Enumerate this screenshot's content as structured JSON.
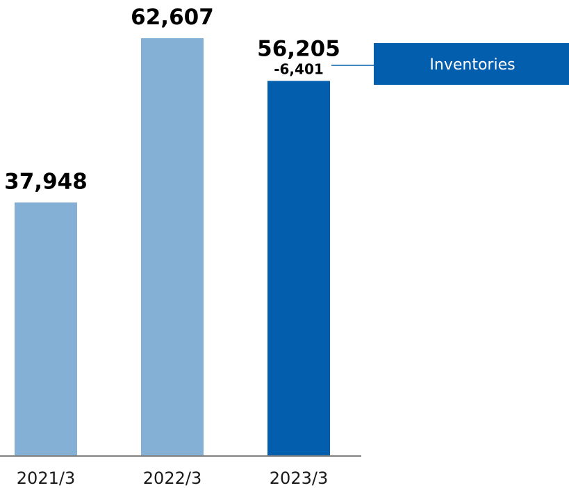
{
  "chart_data": {
    "type": "bar",
    "categories": [
      "2021/3",
      "2022/3",
      "2023/3"
    ],
    "values": [
      37948,
      62607,
      56205
    ],
    "value_labels": [
      "37,948",
      "62,607",
      "56,205"
    ],
    "annotations": [
      {
        "category": "2023/3",
        "text": "-6,401"
      }
    ],
    "legend": {
      "label": "Inventories",
      "placement": "top-right"
    },
    "colors": {
      "previous_years": "#85b0d6",
      "current_year": "#045eae",
      "axis": "#808080"
    },
    "ylim": [
      0,
      70000
    ],
    "grid": false,
    "title": "",
    "xlabel": "",
    "ylabel": ""
  }
}
